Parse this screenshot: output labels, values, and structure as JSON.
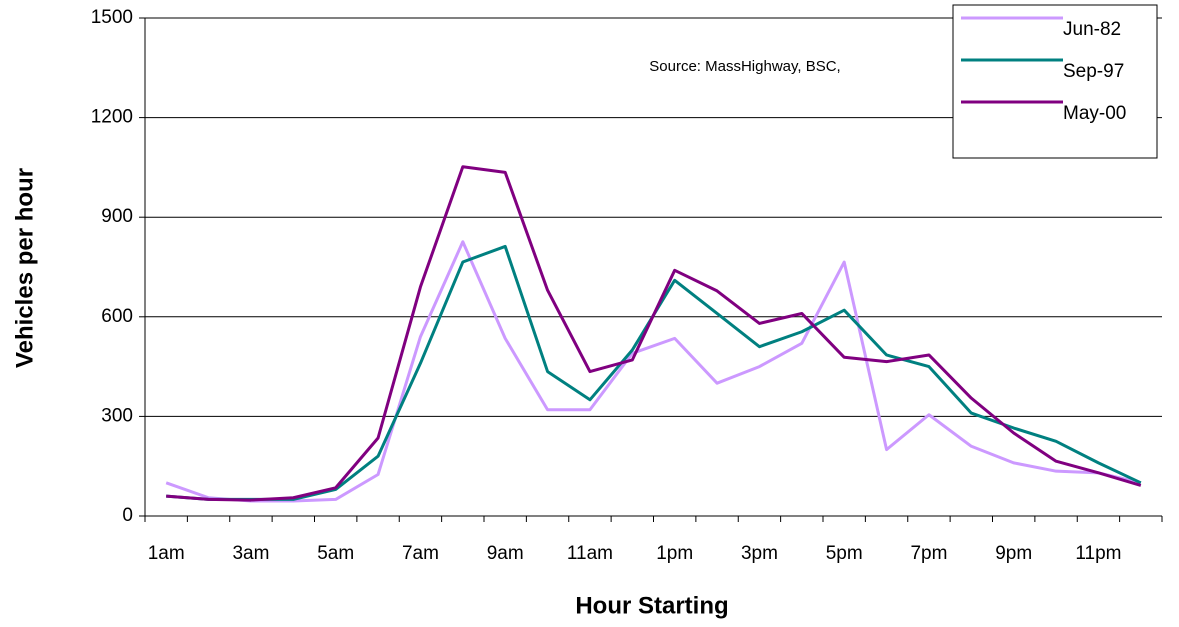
{
  "chart_data": {
    "type": "line",
    "annotation": "Source:  MassHighway, BSC,",
    "x_label": "Hour Starting",
    "y_label": "Vehicles per hour",
    "categories": [
      "1am",
      null,
      "3am",
      null,
      "5am",
      null,
      "7am",
      null,
      "9am",
      null,
      "11am",
      null,
      "1pm",
      null,
      "3pm",
      null,
      "5pm",
      null,
      "7pm",
      null,
      "9pm",
      null,
      "11pm",
      null
    ],
    "series": [
      {
        "name": "Jun-82",
        "color": "#cc99ff",
        "values": [
          100,
          55,
          45,
          45,
          50,
          125,
          540,
          826,
          535,
          320,
          320,
          490,
          535,
          400,
          450,
          520,
          765,
          200,
          305,
          210,
          160,
          135,
          130,
          100
        ]
      },
      {
        "name": "Sep-97",
        "color": "#008080",
        "values": [
          60,
          50,
          50,
          50,
          80,
          180,
          460,
          765,
          812,
          435,
          350,
          500,
          710,
          610,
          510,
          555,
          620,
          485,
          450,
          310,
          265,
          225,
          160,
          100
        ]
      },
      {
        "name": "May-00",
        "color": "#800080",
        "values": [
          60,
          50,
          48,
          55,
          85,
          235,
          690,
          1052,
          1035,
          680,
          435,
          470,
          740,
          678,
          580,
          610,
          478,
          465,
          485,
          355,
          250,
          165,
          130,
          92
        ]
      }
    ],
    "ylim": [
      0,
      1500
    ],
    "yticks": [
      0,
      300,
      600,
      900,
      1200,
      1500
    ],
    "grid": true,
    "legend": "top-right"
  }
}
